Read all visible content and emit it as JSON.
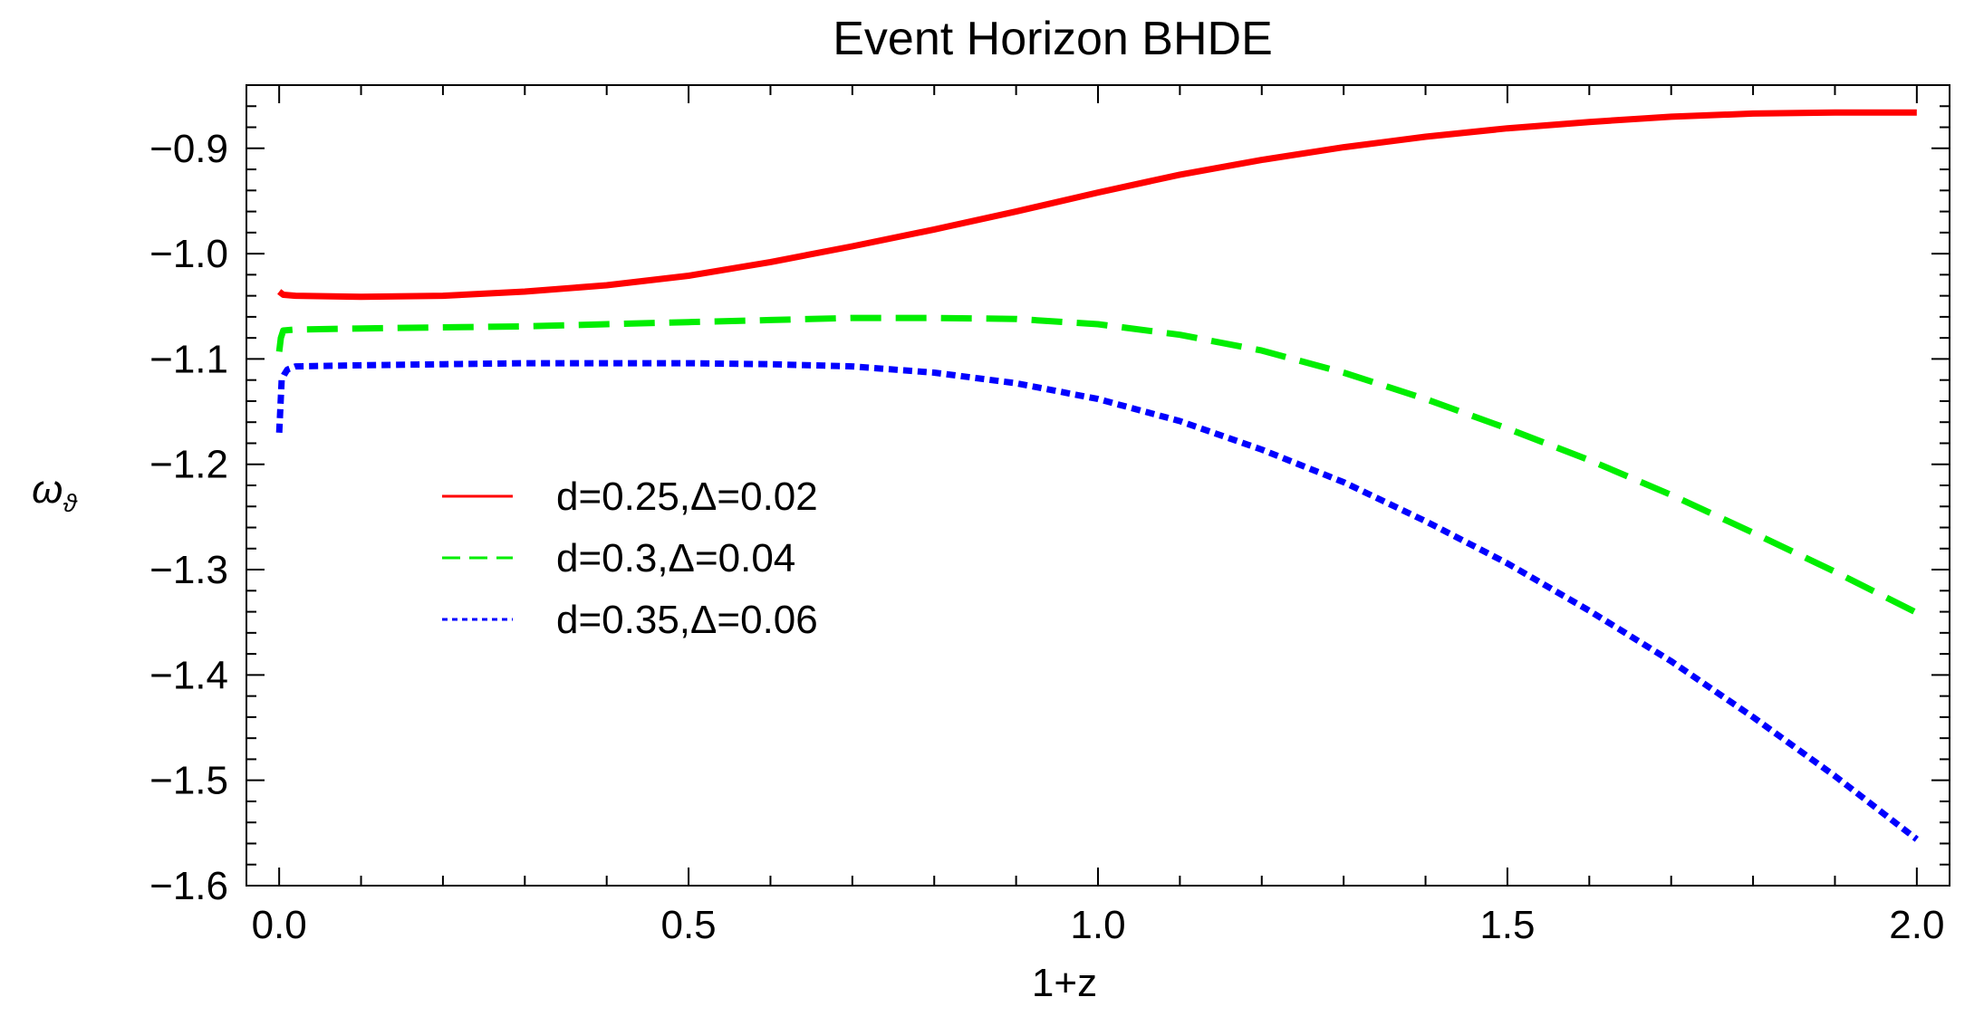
{
  "chart_data": {
    "type": "line",
    "title": "Event Horizon BHDE",
    "xlabel": "1+z",
    "ylabel": "ω",
    "ylabel_subscript": "ϑ",
    "xlim": [
      -0.04,
      2.04
    ],
    "ylim": [
      -1.6,
      -0.84
    ],
    "x_ticks": [
      0.0,
      0.5,
      1.0,
      1.5,
      2.0
    ],
    "x_tick_labels": [
      "0.0",
      "0.5",
      "1.0",
      "1.5",
      "2.0"
    ],
    "y_ticks": [
      -0.9,
      -1.0,
      -1.1,
      -1.2,
      -1.3,
      -1.4,
      -1.5,
      -1.6
    ],
    "y_tick_labels": [
      "−0.9",
      "−1.0",
      "−1.1",
      "−1.2",
      "−1.3",
      "−1.4",
      "−1.5",
      "−1.6"
    ],
    "grid": false,
    "frame": true,
    "legend_position": "center-left",
    "series": [
      {
        "name": "d=0.25,Δ=0.02",
        "color": "#ff0000",
        "dash": "solid",
        "x": [
          0.0,
          0.005,
          0.02,
          0.1,
          0.2,
          0.3,
          0.4,
          0.5,
          0.6,
          0.7,
          0.8,
          0.9,
          1.0,
          1.1,
          1.2,
          1.3,
          1.4,
          1.5,
          1.6,
          1.7,
          1.8,
          1.9,
          2.0
        ],
        "y": [
          -1.036,
          -1.039,
          -1.04,
          -1.041,
          -1.04,
          -1.036,
          -1.03,
          -1.021,
          -1.008,
          -0.993,
          -0.977,
          -0.96,
          -0.942,
          -0.925,
          -0.911,
          -0.899,
          -0.889,
          -0.881,
          -0.875,
          -0.87,
          -0.867,
          -0.866,
          -0.866
        ]
      },
      {
        "name": "d=0.3,Δ=0.04",
        "color": "#00ee00",
        "dash": "long-dash",
        "x": [
          0.0,
          0.002,
          0.005,
          0.02,
          0.1,
          0.2,
          0.3,
          0.4,
          0.5,
          0.6,
          0.7,
          0.8,
          0.9,
          1.0,
          1.1,
          1.2,
          1.3,
          1.4,
          1.5,
          1.6,
          1.7,
          1.8,
          1.9,
          2.0
        ],
        "y": [
          -1.093,
          -1.08,
          -1.073,
          -1.072,
          -1.071,
          -1.07,
          -1.069,
          -1.067,
          -1.065,
          -1.063,
          -1.061,
          -1.061,
          -1.062,
          -1.067,
          -1.077,
          -1.092,
          -1.113,
          -1.138,
          -1.166,
          -1.196,
          -1.229,
          -1.265,
          -1.302,
          -1.341
        ]
      },
      {
        "name": "d=0.35,Δ=0.06",
        "color": "#0000ff",
        "dash": "dotted",
        "x": [
          0.0,
          0.003,
          0.006,
          0.01,
          0.02,
          0.1,
          0.2,
          0.3,
          0.4,
          0.5,
          0.6,
          0.7,
          0.8,
          0.9,
          1.0,
          1.1,
          1.2,
          1.3,
          1.4,
          1.5,
          1.6,
          1.7,
          1.8,
          1.9,
          2.0
        ],
        "y": [
          -1.17,
          -1.12,
          -1.115,
          -1.11,
          -1.107,
          -1.106,
          -1.105,
          -1.104,
          -1.104,
          -1.104,
          -1.105,
          -1.107,
          -1.113,
          -1.123,
          -1.138,
          -1.159,
          -1.186,
          -1.217,
          -1.254,
          -1.294,
          -1.339,
          -1.387,
          -1.44,
          -1.496,
          -1.556
        ]
      }
    ]
  }
}
